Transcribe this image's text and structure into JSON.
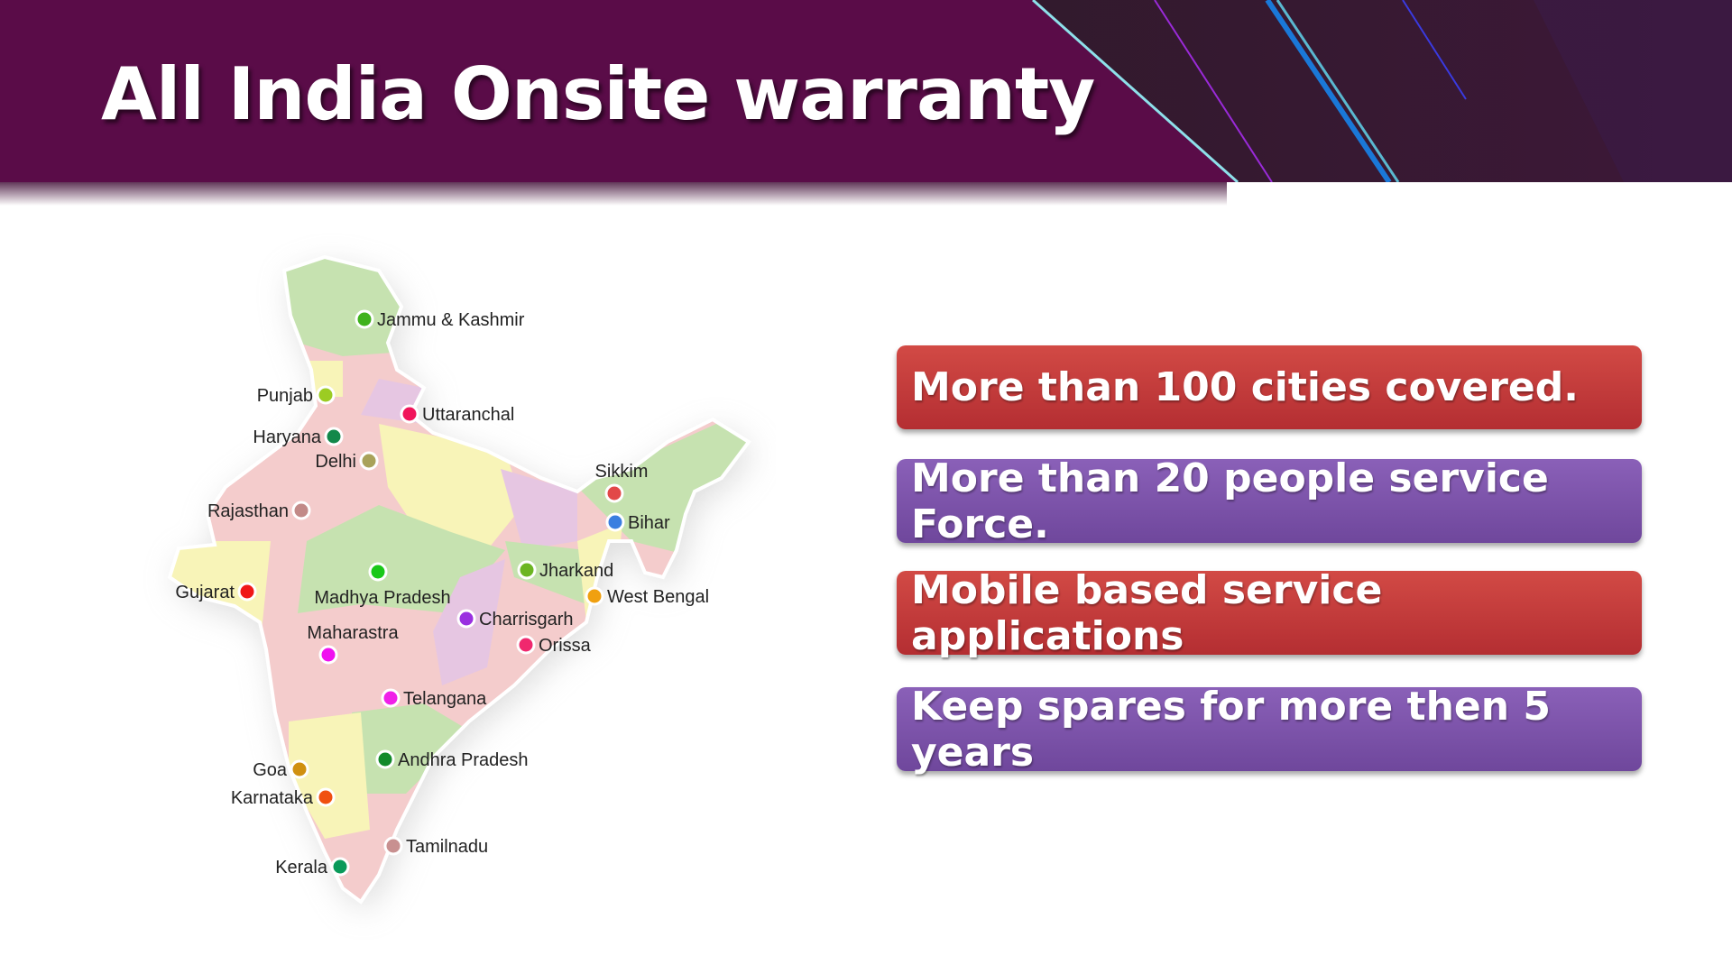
{
  "header": {
    "title": "All India Onsite warranty"
  },
  "features": [
    {
      "text": "More than 100 cities covered.",
      "color": "red"
    },
    {
      "text": "More than 20 people service Force.",
      "color": "purple"
    },
    {
      "text": "Mobile based service applications",
      "color": "red"
    },
    {
      "text": "Keep spares for more then 5 years",
      "color": "purple"
    }
  ],
  "map": {
    "states": [
      {
        "name": "Jammu & Kashmir",
        "dot": "#3fb21c"
      },
      {
        "name": "Punjab",
        "dot": "#9ccc22"
      },
      {
        "name": "Uttaranchal",
        "dot": "#f0145a"
      },
      {
        "name": "Haryana",
        "dot": "#12884a"
      },
      {
        "name": "Delhi",
        "dot": "#a9a25a"
      },
      {
        "name": "Rajasthan",
        "dot": "#c28a88"
      },
      {
        "name": "Sikkim",
        "dot": "#e24848"
      },
      {
        "name": "Bihar",
        "dot": "#3a7ee0"
      },
      {
        "name": "Jharkand",
        "dot": "#6cb522"
      },
      {
        "name": "West Bengal",
        "dot": "#f0a010"
      },
      {
        "name": "Gujarat",
        "dot": "#f01818"
      },
      {
        "name": "Madhya Pradesh",
        "dot": "#18c818"
      },
      {
        "name": "Charrisgarh",
        "dot": "#9a30e0"
      },
      {
        "name": "Orissa",
        "dot": "#f0286e"
      },
      {
        "name": "Maharastra",
        "dot": "#f010f0"
      },
      {
        "name": "Telangana",
        "dot": "#f020e8"
      },
      {
        "name": "Andhra Pradesh",
        "dot": "#128a2a"
      },
      {
        "name": "Goa",
        "dot": "#d09010"
      },
      {
        "name": "Karnataka",
        "dot": "#f05010"
      },
      {
        "name": "Tamilnadu",
        "dot": "#c89090"
      },
      {
        "name": "Kerala",
        "dot": "#0a9a5a"
      }
    ]
  }
}
